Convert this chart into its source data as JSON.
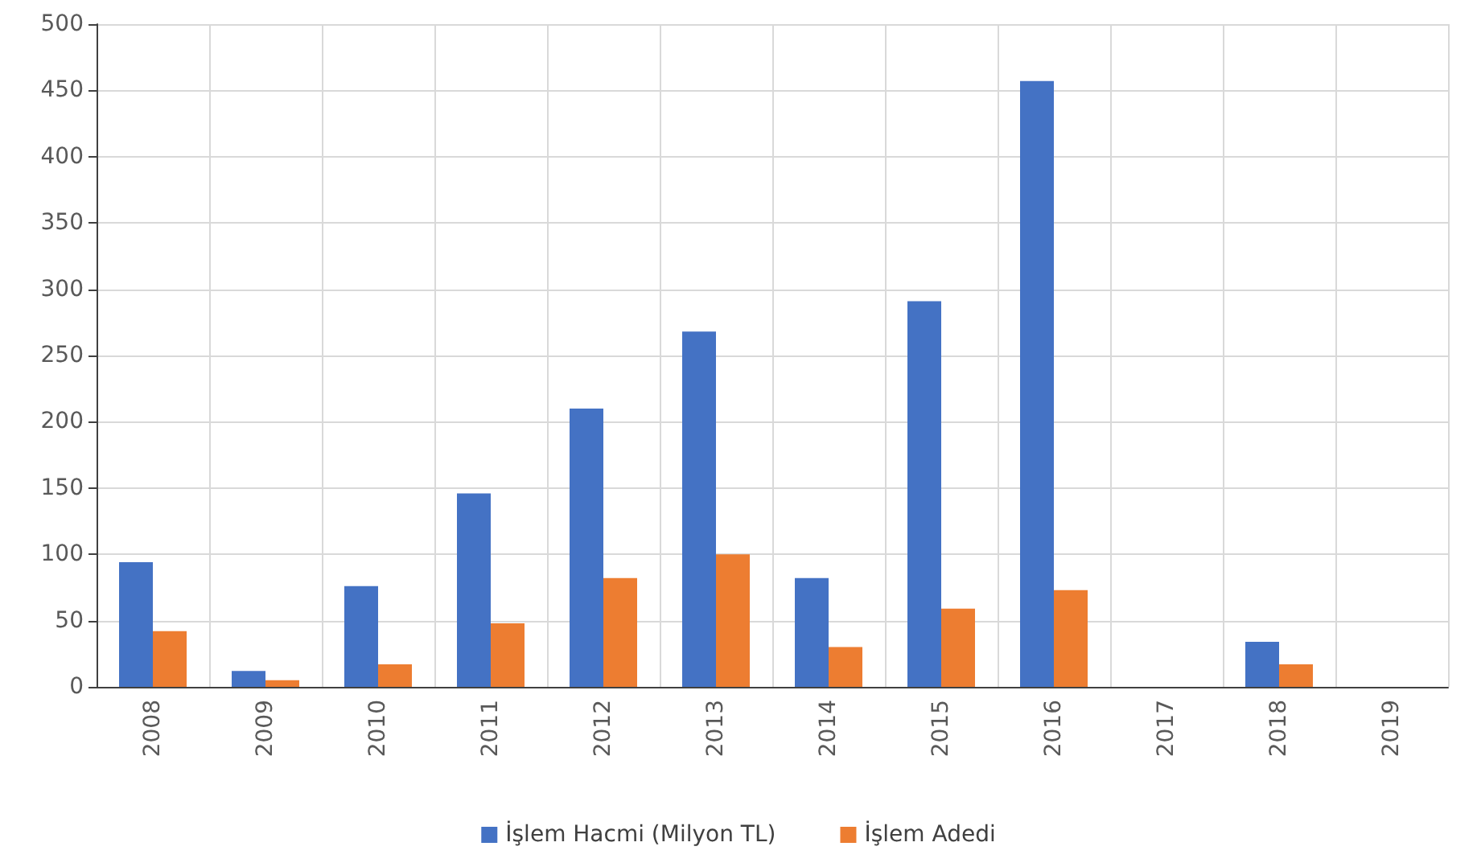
{
  "chart_data": {
    "type": "bar",
    "categories": [
      "2008",
      "2009",
      "2010",
      "2011",
      "2012",
      "2013",
      "2014",
      "2015",
      "2016",
      "2017",
      "2018",
      "2019"
    ],
    "series": [
      {
        "name": "İşlem Hacmi (Milyon TL)",
        "color": "#4472c4",
        "values": [
          94,
          12,
          76,
          146,
          210,
          268,
          82,
          291,
          457,
          null,
          34,
          null
        ]
      },
      {
        "name": "İşlem Adedi",
        "color": "#ed7d31",
        "values": [
          42,
          5,
          17,
          48,
          82,
          100,
          30,
          59,
          73,
          null,
          17,
          null
        ]
      }
    ],
    "ylim": [
      0,
      500
    ],
    "yticks": [
      0,
      50,
      100,
      150,
      200,
      250,
      300,
      350,
      400,
      450,
      500
    ],
    "grid": true,
    "legend": "bottom"
  }
}
